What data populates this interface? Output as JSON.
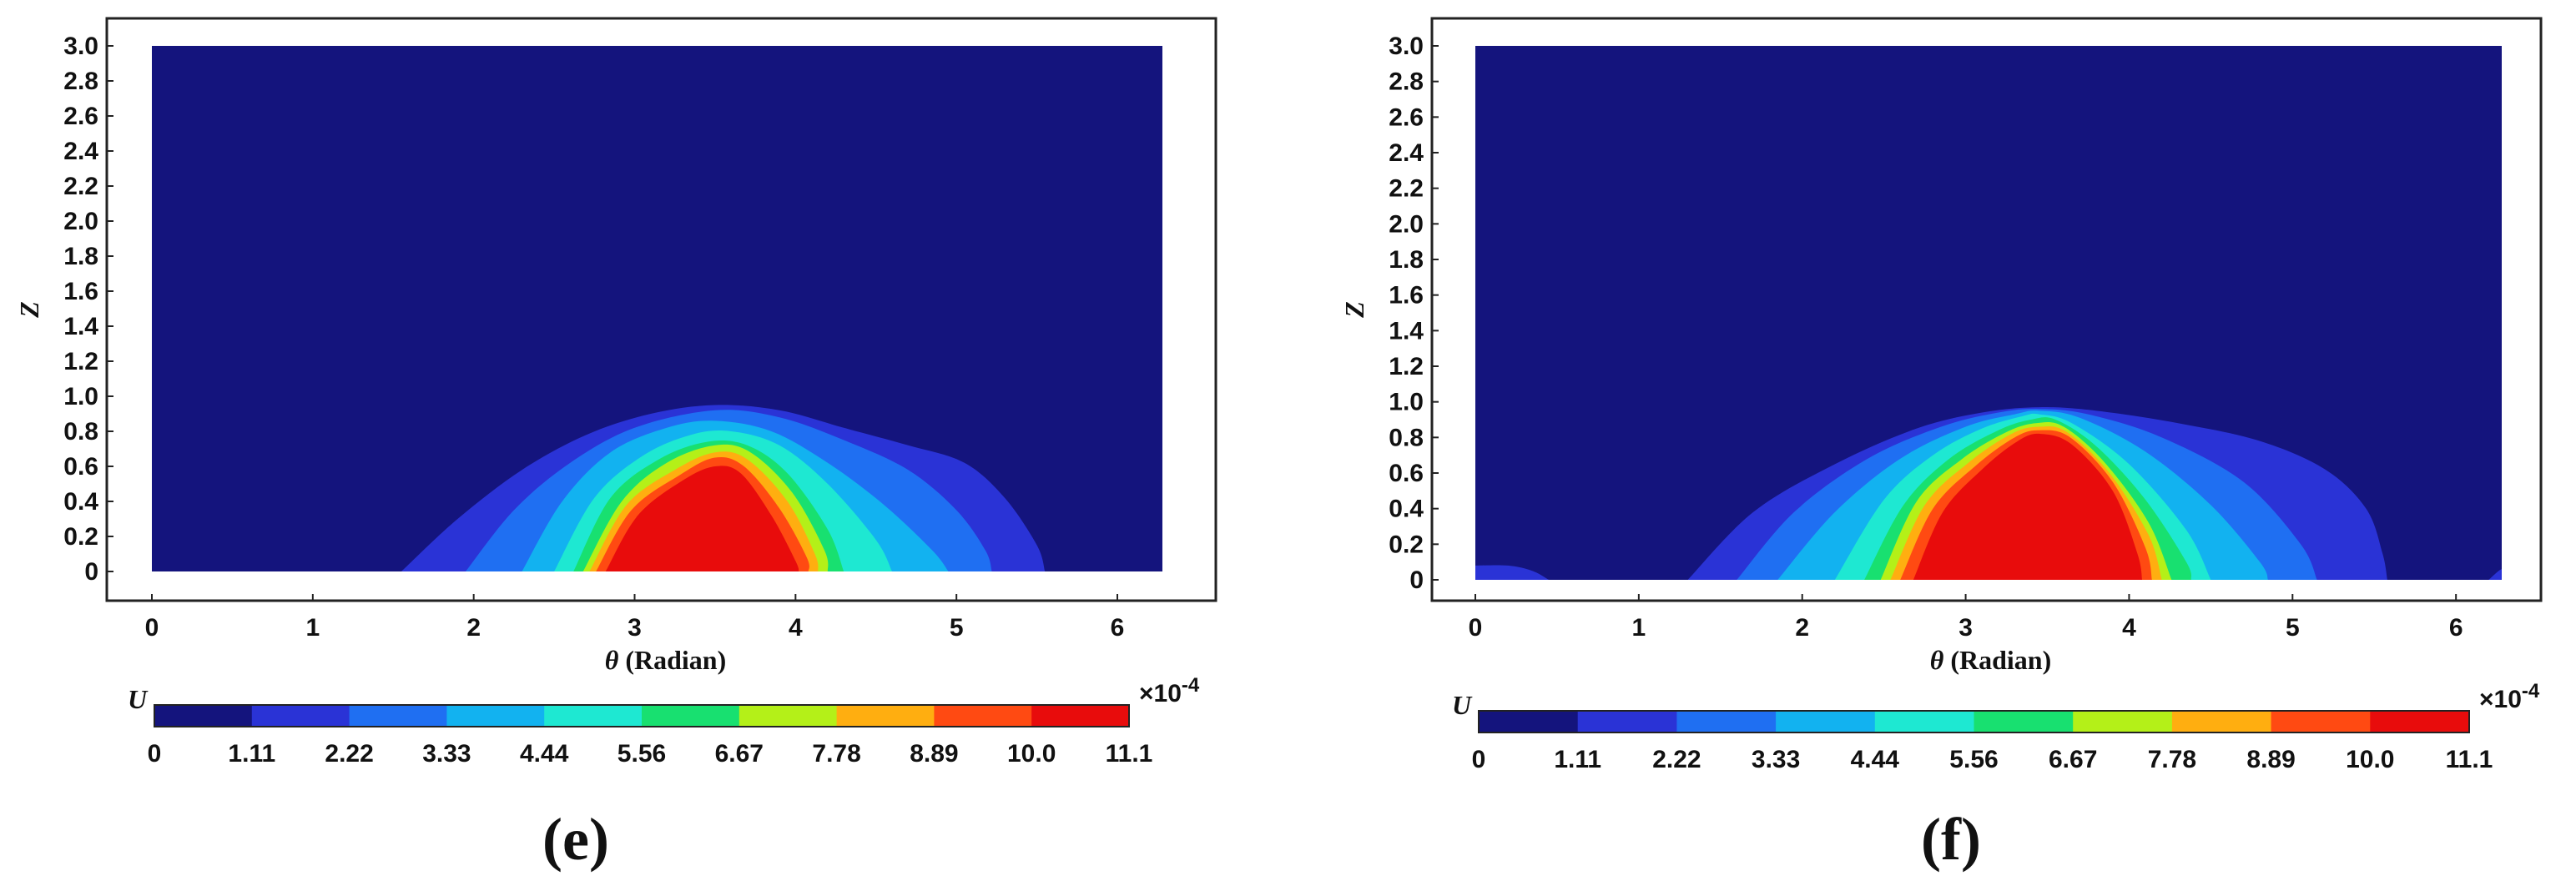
{
  "chart_data": [
    {
      "type": "contour",
      "panel_label": "(e)",
      "xlabel_symbol": "θ",
      "xlabel_text": " (Radian)",
      "ylabel": "Z",
      "xlim": [
        0,
        6.28
      ],
      "ylim": [
        0,
        3.0
      ],
      "x_ticks": [
        "0",
        "1",
        "2",
        "3",
        "4",
        "5",
        "6"
      ],
      "y_ticks": [
        "0",
        "0.2",
        "0.4",
        "0.6",
        "0.8",
        "1.0",
        "1.2",
        "1.4",
        "1.6",
        "1.8",
        "2.0",
        "2.2",
        "2.4",
        "2.6",
        "2.8",
        "3.0"
      ],
      "colorbar": {
        "label": "U",
        "multiplier": "×10",
        "exponent": "-4",
        "ticks": [
          "0",
          "1.11",
          "2.22",
          "3.33",
          "4.44",
          "5.56",
          "6.67",
          "7.78",
          "8.89",
          "10.0",
          "11.1"
        ],
        "colors": [
          "#14147d",
          "#2a33d6",
          "#1f6ff2",
          "#12b2f0",
          "#1ee8d2",
          "#18e070",
          "#b4f018",
          "#ffae10",
          "#ff4a12",
          "#e80c0c"
        ]
      },
      "contours": [
        {
          "level": 1.11,
          "x": [
            1.55,
            1.9,
            2.3,
            2.7,
            3.1,
            3.5,
            3.9,
            4.3,
            4.7,
            5.05,
            5.3,
            5.5,
            5.55
          ],
          "z": [
            0,
            0.3,
            0.58,
            0.78,
            0.9,
            0.95,
            0.92,
            0.82,
            0.72,
            0.62,
            0.42,
            0.15,
            0
          ]
        },
        {
          "level": 2.22,
          "x": [
            1.95,
            2.25,
            2.6,
            3.0,
            3.5,
            3.9,
            4.3,
            4.7,
            5.0,
            5.18,
            5.22
          ],
          "z": [
            0,
            0.35,
            0.62,
            0.82,
            0.92,
            0.88,
            0.75,
            0.58,
            0.35,
            0.12,
            0
          ]
        },
        {
          "level": 3.33,
          "x": [
            2.3,
            2.55,
            2.85,
            3.2,
            3.5,
            3.85,
            4.2,
            4.55,
            4.85,
            4.95
          ],
          "z": [
            0,
            0.4,
            0.68,
            0.82,
            0.86,
            0.8,
            0.62,
            0.38,
            0.12,
            0
          ]
        },
        {
          "level": 4.44,
          "x": [
            2.5,
            2.75,
            3.05,
            3.35,
            3.6,
            3.9,
            4.2,
            4.5,
            4.6
          ],
          "z": [
            0,
            0.42,
            0.66,
            0.78,
            0.8,
            0.72,
            0.5,
            0.18,
            0
          ]
        },
        {
          "level": 5.56,
          "x": [
            2.62,
            2.85,
            3.15,
            3.45,
            3.7,
            3.95,
            4.2,
            4.3
          ],
          "z": [
            0,
            0.42,
            0.64,
            0.74,
            0.72,
            0.56,
            0.24,
            0
          ]
        },
        {
          "level": 6.67,
          "x": [
            2.68,
            2.92,
            3.2,
            3.5,
            3.72,
            3.98,
            4.18,
            4.2
          ],
          "z": [
            0,
            0.4,
            0.62,
            0.72,
            0.68,
            0.45,
            0.12,
            0
          ]
        },
        {
          "level": 7.78,
          "x": [
            2.72,
            2.95,
            3.25,
            3.5,
            3.7,
            3.95,
            4.12,
            4.14
          ],
          "z": [
            0,
            0.38,
            0.58,
            0.68,
            0.64,
            0.4,
            0.1,
            0
          ]
        },
        {
          "level": 8.89,
          "x": [
            2.76,
            2.98,
            3.28,
            3.5,
            3.68,
            3.9,
            4.07,
            4.08
          ],
          "z": [
            0,
            0.35,
            0.55,
            0.65,
            0.6,
            0.36,
            0.08,
            0
          ]
        },
        {
          "level": 10.0,
          "x": [
            2.82,
            3.02,
            3.3,
            3.5,
            3.66,
            3.85,
            4.0,
            4.02
          ],
          "z": [
            0,
            0.32,
            0.52,
            0.6,
            0.56,
            0.32,
            0.06,
            0
          ]
        }
      ]
    },
    {
      "type": "contour",
      "panel_label": "(f)",
      "xlabel_symbol": "θ",
      "xlabel_text": " (Radian)",
      "ylabel": "Z",
      "xlim": [
        0,
        6.28
      ],
      "ylim": [
        0,
        3.0
      ],
      "x_ticks": [
        "0",
        "1",
        "2",
        "3",
        "4",
        "5",
        "6"
      ],
      "y_ticks": [
        "0",
        "0.2",
        "0.4",
        "0.6",
        "0.8",
        "1.0",
        "1.2",
        "1.4",
        "1.6",
        "1.8",
        "2.0",
        "2.2",
        "2.4",
        "2.6",
        "2.8",
        "3.0"
      ],
      "colorbar": {
        "label": "U",
        "multiplier": "×10",
        "exponent": "-4",
        "ticks": [
          "0",
          "1.11",
          "2.22",
          "3.33",
          "4.44",
          "5.56",
          "6.67",
          "7.78",
          "8.89",
          "10.0",
          "11.1"
        ],
        "colors": [
          "#14147d",
          "#2a33d6",
          "#1f6ff2",
          "#12b2f0",
          "#1ee8d2",
          "#18e070",
          "#b4f018",
          "#ffae10",
          "#ff4a12",
          "#e80c0c"
        ]
      },
      "contours": [
        {
          "level": 1.11,
          "x": [
            1.3,
            1.7,
            2.2,
            2.7,
            3.1,
            3.45,
            3.8,
            4.3,
            4.8,
            5.2,
            5.45,
            5.55,
            5.58
          ],
          "z": [
            0,
            0.38,
            0.65,
            0.85,
            0.94,
            0.97,
            0.95,
            0.88,
            0.78,
            0.62,
            0.4,
            0.15,
            0
          ]
        },
        {
          "level": 2.22,
          "x": [
            1.6,
            1.95,
            2.4,
            2.85,
            3.2,
            3.45,
            3.75,
            4.2,
            4.7,
            5.05,
            5.15
          ],
          "z": [
            0,
            0.38,
            0.68,
            0.86,
            0.94,
            0.96,
            0.93,
            0.8,
            0.55,
            0.2,
            0
          ]
        },
        {
          "level": 3.33,
          "x": [
            1.85,
            2.2,
            2.6,
            3.0,
            3.3,
            3.45,
            3.7,
            4.1,
            4.5,
            4.8,
            4.85
          ],
          "z": [
            0,
            0.38,
            0.68,
            0.86,
            0.93,
            0.95,
            0.91,
            0.72,
            0.42,
            0.1,
            0
          ]
        },
        {
          "level": 4.44,
          "x": [
            2.2,
            2.5,
            2.8,
            3.1,
            3.35,
            3.45,
            3.65,
            4.0,
            4.35,
            4.5
          ],
          "z": [
            0,
            0.45,
            0.7,
            0.85,
            0.92,
            0.93,
            0.88,
            0.65,
            0.28,
            0
          ]
        },
        {
          "level": 5.56,
          "x": [
            2.38,
            2.62,
            2.9,
            3.2,
            3.4,
            3.55,
            3.8,
            4.1,
            4.35,
            4.38
          ],
          "z": [
            0,
            0.42,
            0.68,
            0.84,
            0.9,
            0.9,
            0.75,
            0.45,
            0.1,
            0
          ]
        },
        {
          "level": 6.67,
          "x": [
            2.48,
            2.7,
            2.98,
            3.25,
            3.43,
            3.6,
            3.85,
            4.12,
            4.26
          ],
          "z": [
            0,
            0.44,
            0.68,
            0.83,
            0.88,
            0.86,
            0.66,
            0.32,
            0
          ]
        },
        {
          "level": 7.78,
          "x": [
            2.54,
            2.75,
            3.02,
            3.28,
            3.45,
            3.62,
            3.88,
            4.12,
            4.2
          ],
          "z": [
            0,
            0.42,
            0.66,
            0.82,
            0.86,
            0.83,
            0.6,
            0.25,
            0
          ]
        },
        {
          "level": 8.89,
          "x": [
            2.6,
            2.8,
            3.06,
            3.3,
            3.45,
            3.64,
            3.9,
            4.1,
            4.14
          ],
          "z": [
            0,
            0.4,
            0.64,
            0.8,
            0.84,
            0.8,
            0.55,
            0.18,
            0
          ]
        },
        {
          "level": 10.0,
          "x": [
            2.68,
            2.86,
            3.1,
            3.32,
            3.46,
            3.65,
            3.9,
            4.05,
            4.08
          ],
          "z": [
            0,
            0.38,
            0.62,
            0.78,
            0.82,
            0.76,
            0.5,
            0.15,
            0
          ]
        }
      ],
      "edge_spots": [
        {
          "level": 1.11,
          "x": [
            0.0,
            0.2,
            0.35,
            0.45
          ],
          "z": [
            0.08,
            0.08,
            0.05,
            0
          ]
        },
        {
          "level": 1.11,
          "x": [
            6.2,
            6.28,
            6.28
          ],
          "z": [
            0,
            0.06,
            0
          ]
        }
      ]
    }
  ]
}
